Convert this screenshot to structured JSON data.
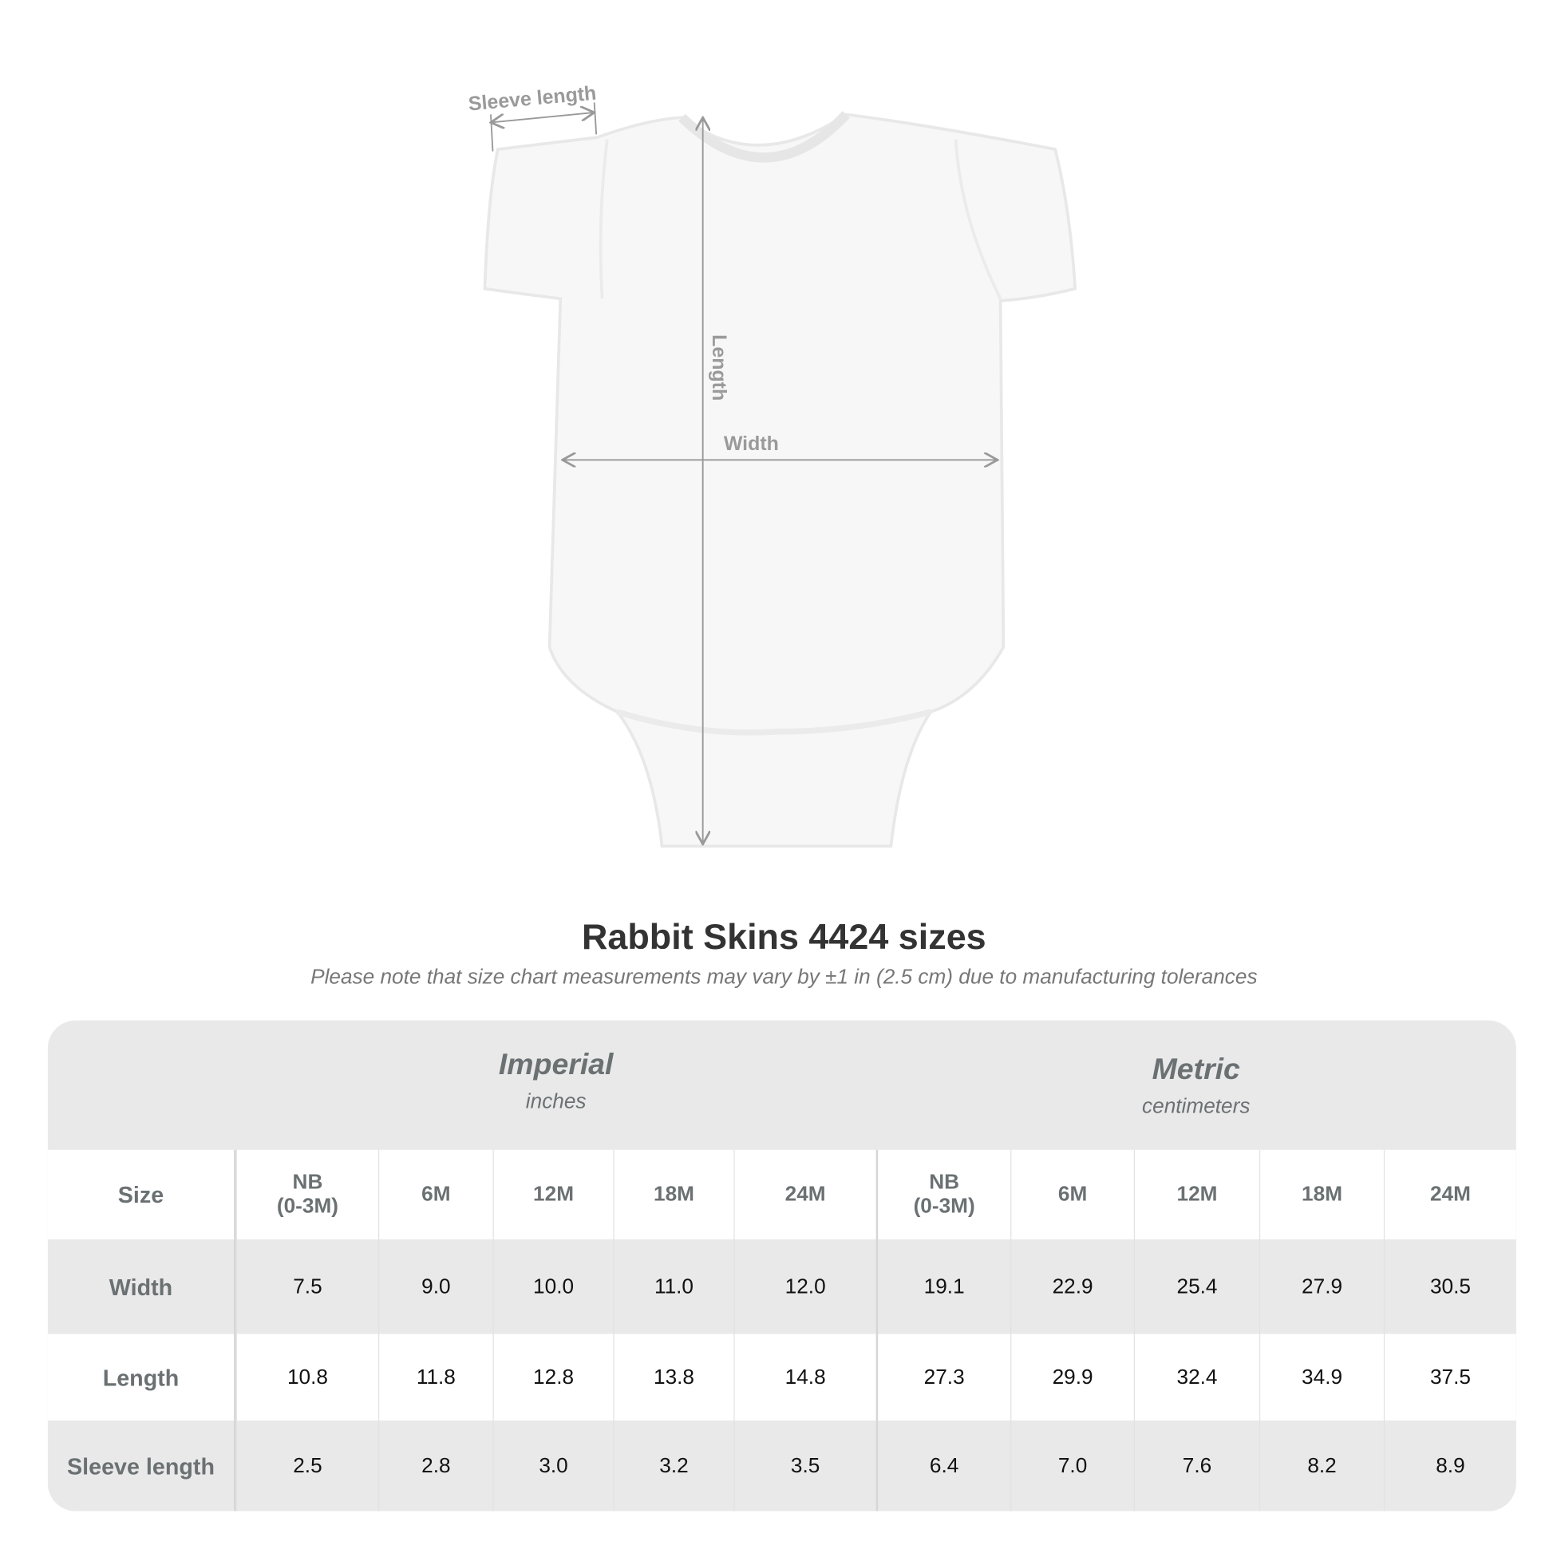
{
  "diagram": {
    "labels": {
      "sleeve": "Sleeve length",
      "length": "Length",
      "width": "Width"
    }
  },
  "title": "Rabbit Skins 4424 sizes",
  "subtitle": "Please note that size chart measurements may vary by ±1 in (2.5 cm) due to manufacturing tolerances",
  "table": {
    "imperial": {
      "label": "Imperial",
      "unit": "inches"
    },
    "metric": {
      "label": "Metric",
      "unit": "centimeters"
    },
    "size_label": "Size",
    "sizes": [
      [
        "NB",
        "(0-3M)"
      ],
      [
        "6M"
      ],
      [
        "12M"
      ],
      [
        "18M"
      ],
      [
        "24M"
      ],
      [
        "NB",
        "(0-3M)"
      ],
      [
        "6M"
      ],
      [
        "12M"
      ],
      [
        "18M"
      ],
      [
        "24M"
      ]
    ],
    "rows": [
      {
        "label": "Width",
        "values": [
          "7.5",
          "9.0",
          "10.0",
          "11.0",
          "12.0",
          "19.1",
          "22.9",
          "25.4",
          "27.9",
          "30.5"
        ]
      },
      {
        "label": "Length",
        "values": [
          "10.8",
          "11.8",
          "12.8",
          "13.8",
          "14.8",
          "27.3",
          "29.9",
          "32.4",
          "34.9",
          "37.5"
        ]
      },
      {
        "label": "Sleeve length",
        "values": [
          "2.5",
          "2.8",
          "3.0",
          "3.2",
          "3.5",
          "6.4",
          "7.0",
          "7.6",
          "8.2",
          "8.9"
        ]
      }
    ]
  },
  "colors": {
    "header_bg": "#e9e9e9",
    "label_text": "#6b7173",
    "title_text": "#333333"
  }
}
